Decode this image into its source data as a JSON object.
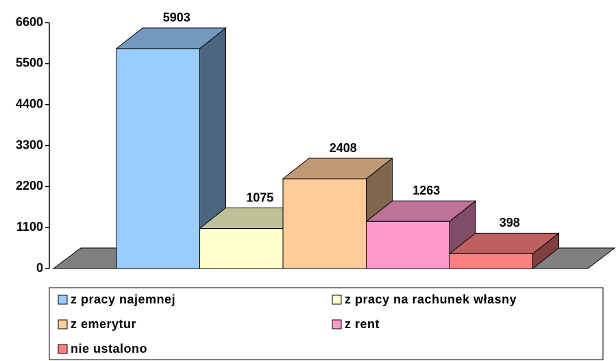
{
  "chart_data": {
    "type": "bar3d",
    "categories": [
      "z pracy najemnej",
      "z pracy na rachunek własny",
      "z emerytur",
      "z rent",
      "nie ustalono"
    ],
    "values": [
      5903,
      1075,
      2408,
      1263,
      398
    ],
    "colors": [
      "#99ccff",
      "#ffffcc",
      "#ffcc99",
      "#ff99cc",
      "#ff8080"
    ],
    "ylim": [
      0,
      6600
    ],
    "yticks": [
      0,
      1100,
      2200,
      3300,
      4400,
      5500,
      6600
    ],
    "legend": "bottom"
  }
}
